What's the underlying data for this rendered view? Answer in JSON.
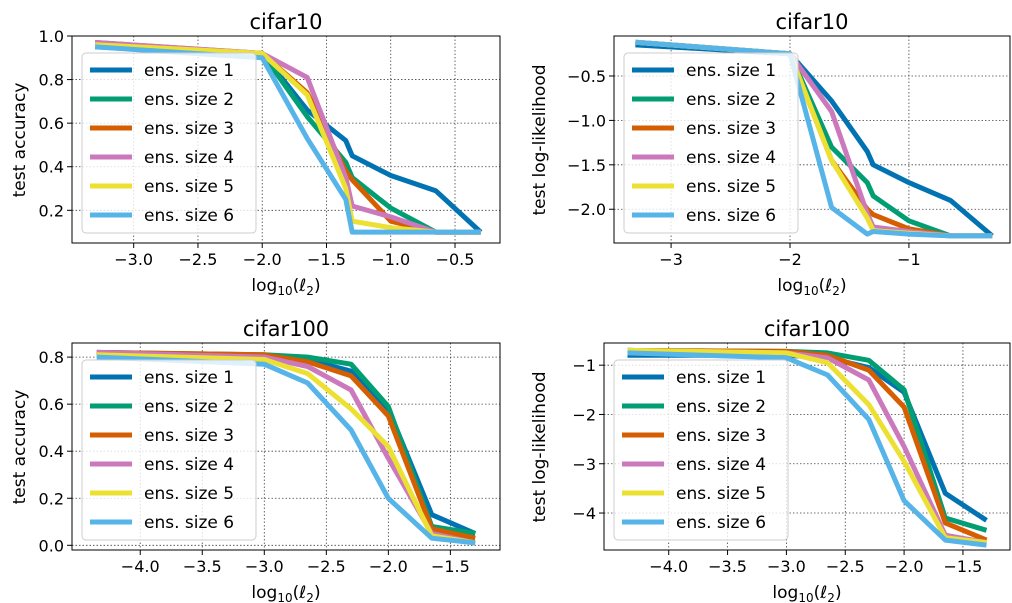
{
  "colors": [
    "#0173b2",
    "#029e73",
    "#d55e00",
    "#cc78bc",
    "#ece133",
    "#56b4e9"
  ],
  "chart_data": [
    {
      "type": "line",
      "title": "cifar10",
      "xlabel": "log10(ℓ2)",
      "ylabel": "test accuracy",
      "xlim": [
        -3.48,
        -0.15
      ],
      "ylim": [
        0.05,
        1.0
      ],
      "xticks": [
        -3.0,
        -2.5,
        -2.0,
        -1.5,
        -1.0,
        -0.5
      ],
      "xtick_labels": [
        "−3.0",
        "−2.5",
        "−2.0",
        "−1.5",
        "−1.0",
        "−0.5"
      ],
      "yticks": [
        0.2,
        0.4,
        0.6,
        0.8,
        1.0
      ],
      "ytick_labels": [
        "0.2",
        "0.4",
        "0.6",
        "0.8",
        "1.0"
      ],
      "grid": true,
      "legend": "left",
      "x": [
        -3.3,
        -2.0,
        -1.65,
        -1.35,
        -1.3,
        -1.0,
        -0.65,
        -0.3
      ],
      "series": [
        {
          "name": "ens. size 1",
          "values": [
            0.95,
            0.92,
            0.66,
            0.52,
            0.45,
            0.36,
            0.29,
            0.1
          ]
        },
        {
          "name": "ens. size 2",
          "values": [
            0.96,
            0.92,
            0.63,
            0.42,
            0.35,
            0.21,
            0.1,
            0.1
          ]
        },
        {
          "name": "ens. size 3",
          "values": [
            0.97,
            0.92,
            0.74,
            0.38,
            0.34,
            0.15,
            0.1,
            0.1
          ]
        },
        {
          "name": "ens. size 4",
          "values": [
            0.97,
            0.92,
            0.81,
            0.35,
            0.22,
            0.17,
            0.1,
            0.1
          ]
        },
        {
          "name": "ens. size 5",
          "values": [
            0.96,
            0.92,
            0.73,
            0.3,
            0.15,
            0.12,
            0.1,
            0.1
          ]
        },
        {
          "name": "ens. size 6",
          "values": [
            0.95,
            0.9,
            0.53,
            0.25,
            0.1,
            0.1,
            0.1,
            0.1
          ]
        }
      ]
    },
    {
      "type": "line",
      "title": "cifar10",
      "xlabel": "log10(ℓ2)",
      "ylabel": "test log-likelihood",
      "xlim": [
        -3.48,
        -0.15
      ],
      "ylim": [
        -2.38,
        -0.05
      ],
      "xticks": [
        -3,
        -2,
        -1
      ],
      "xtick_labels": [
        "−3",
        "−2",
        "−1"
      ],
      "yticks": [
        -2.0,
        -1.5,
        -1.0,
        -0.5
      ],
      "ytick_labels": [
        "−2.0",
        "−1.5",
        "−1.0",
        "−0.5"
      ],
      "grid": true,
      "legend": "left",
      "x": [
        -3.3,
        -2.0,
        -1.65,
        -1.35,
        -1.3,
        -1.0,
        -0.65,
        -0.3
      ],
      "series": [
        {
          "name": "ens. size 1",
          "values": [
            -0.15,
            -0.25,
            -0.78,
            -1.35,
            -1.5,
            -1.7,
            -1.9,
            -2.3
          ]
        },
        {
          "name": "ens. size 2",
          "values": [
            -0.12,
            -0.25,
            -1.3,
            -1.7,
            -1.85,
            -2.13,
            -2.3,
            -2.3
          ]
        },
        {
          "name": "ens. size 3",
          "values": [
            -0.12,
            -0.25,
            -1.45,
            -2.0,
            -2.06,
            -2.22,
            -2.3,
            -2.3
          ]
        },
        {
          "name": "ens. size 4",
          "values": [
            -0.12,
            -0.25,
            -0.9,
            -2.05,
            -2.2,
            -2.25,
            -2.3,
            -2.3
          ]
        },
        {
          "name": "ens. size 5",
          "values": [
            -0.12,
            -0.25,
            -1.45,
            -2.1,
            -2.24,
            -2.27,
            -2.3,
            -2.3
          ]
        },
        {
          "name": "ens. size 6",
          "values": [
            -0.12,
            -0.25,
            -1.98,
            -2.28,
            -2.25,
            -2.28,
            -2.3,
            -2.3
          ]
        }
      ]
    },
    {
      "type": "line",
      "title": "cifar100",
      "xlabel": "log10(ℓ2)",
      "ylabel": "test accuracy",
      "xlim": [
        -4.55,
        -1.1
      ],
      "ylim": [
        -0.02,
        0.86
      ],
      "xticks": [
        -4.0,
        -3.5,
        -3.0,
        -2.5,
        -2.0,
        -1.5
      ],
      "xtick_labels": [
        "−4.0",
        "−3.5",
        "−3.0",
        "−2.5",
        "−2.0",
        "−1.5"
      ],
      "yticks": [
        0.0,
        0.2,
        0.4,
        0.6,
        0.8
      ],
      "ytick_labels": [
        "0.0",
        "0.2",
        "0.4",
        "0.6",
        "0.8"
      ],
      "grid": true,
      "legend": "left",
      "x": [
        -4.35,
        -3.0,
        -2.65,
        -2.3,
        -2.0,
        -1.65,
        -1.3
      ],
      "series": [
        {
          "name": "ens. size 1",
          "values": [
            0.81,
            0.8,
            0.79,
            0.74,
            0.58,
            0.13,
            0.05
          ]
        },
        {
          "name": "ens. size 2",
          "values": [
            0.82,
            0.81,
            0.8,
            0.77,
            0.59,
            0.08,
            0.05
          ]
        },
        {
          "name": "ens. size 3",
          "values": [
            0.82,
            0.81,
            0.78,
            0.72,
            0.55,
            0.07,
            0.03
          ]
        },
        {
          "name": "ens. size 4",
          "values": [
            0.82,
            0.8,
            0.76,
            0.66,
            0.37,
            0.05,
            0.01
          ]
        },
        {
          "name": "ens. size 5",
          "values": [
            0.81,
            0.79,
            0.73,
            0.58,
            0.42,
            0.04,
            0.01
          ]
        },
        {
          "name": "ens. size 6",
          "values": [
            0.8,
            0.77,
            0.69,
            0.49,
            0.2,
            0.03,
            0.01
          ]
        }
      ]
    },
    {
      "type": "line",
      "title": "cifar100",
      "xlabel": "log10(ℓ2)",
      "ylabel": "test log-likelihood",
      "xlim": [
        -4.55,
        -1.1
      ],
      "ylim": [
        -4.75,
        -0.55
      ],
      "xticks": [
        -4.0,
        -3.5,
        -3.0,
        -2.5,
        -2.0,
        -1.5
      ],
      "xtick_labels": [
        "−4.0",
        "−3.5",
        "−3.0",
        "−2.5",
        "−2.0",
        "−1.5"
      ],
      "yticks": [
        -4,
        -3,
        -2,
        -1
      ],
      "ytick_labels": [
        "−4",
        "−3",
        "−2",
        "−1"
      ],
      "grid": true,
      "legend": "left",
      "x": [
        -4.35,
        -3.0,
        -2.65,
        -2.3,
        -2.0,
        -1.65,
        -1.3
      ],
      "series": [
        {
          "name": "ens. size 1",
          "values": [
            -0.8,
            -0.8,
            -0.85,
            -1.05,
            -1.55,
            -3.6,
            -4.15
          ]
        },
        {
          "name": "ens. size 2",
          "values": [
            -0.7,
            -0.72,
            -0.75,
            -0.9,
            -1.5,
            -4.1,
            -4.35
          ]
        },
        {
          "name": "ens. size 3",
          "values": [
            -0.7,
            -0.72,
            -0.8,
            -1.1,
            -1.85,
            -4.2,
            -4.55
          ]
        },
        {
          "name": "ens. size 4",
          "values": [
            -0.7,
            -0.75,
            -0.85,
            -1.3,
            -2.65,
            -4.45,
            -4.6
          ]
        },
        {
          "name": "ens. size 5",
          "values": [
            -0.7,
            -0.75,
            -0.95,
            -1.8,
            -2.95,
            -4.5,
            -4.6
          ]
        },
        {
          "name": "ens. size 6",
          "values": [
            -0.75,
            -0.85,
            -1.2,
            -2.1,
            -3.75,
            -4.55,
            -4.65
          ]
        }
      ]
    }
  ]
}
